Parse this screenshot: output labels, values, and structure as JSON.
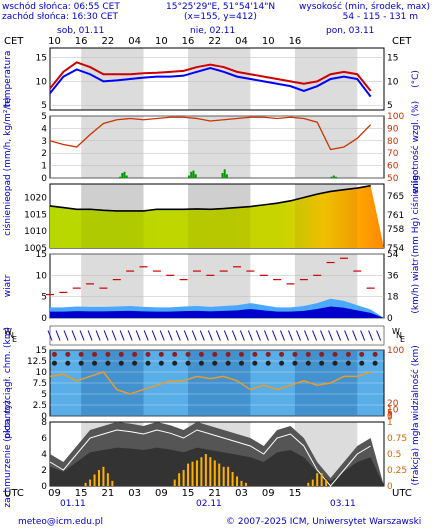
{
  "header": {
    "sunrise": "wschód słońca: 06:55 CET",
    "sunset": "zachód słońca: 16:30 CET",
    "coords": "15°25'29\"E, 51°54'14\"N",
    "grid": "(x=155, y=412)",
    "elev_title": "wysokość (min, środek, max)",
    "elev_values": "54 - 115 - 131 m"
  },
  "top_axis": {
    "tz_left": "CET",
    "tz_right": "CET",
    "days": [
      "sob, 01.11",
      "nie, 02.11",
      "pon, 03.11"
    ],
    "hours": [
      "10",
      "16",
      "22",
      "04",
      "10",
      "16",
      "22",
      "04",
      "10",
      "16"
    ]
  },
  "bottom_axis": {
    "tz_left": "UTC",
    "tz_right": "UTC",
    "hours": [
      "09",
      "15",
      "21",
      "03",
      "09",
      "15",
      "21",
      "03",
      "09",
      "15"
    ],
    "dates": [
      "01.11",
      "02.11",
      "03.11"
    ]
  },
  "footer": {
    "email": "meteo@icm.edu.pl",
    "copyright": "© 2007-2025 ICM, Uniwersytet Warszawski"
  },
  "colors": {
    "night": "#dcdcdc",
    "day": "#ffffff",
    "temp_max": "#cc0000",
    "temp_mean": "#0000ff",
    "humidity": "#cc3300",
    "precip": "#009900",
    "pressure_line": "#000000",
    "wind_fill": "#0000cc",
    "cloud_fill": "#5aaee8"
  },
  "chart_data": [
    {
      "type": "line",
      "panel": "temperature",
      "ylabel_left": "temperatura",
      "ylabel_right": "(°C)",
      "yticks": [
        5,
        10,
        15
      ],
      "ylim": [
        4,
        17
      ],
      "x_hours": [
        0,
        3,
        6,
        9,
        12,
        15,
        18,
        21,
        24,
        27,
        30,
        33,
        36,
        39,
        42,
        45,
        48,
        51,
        54,
        57,
        60,
        63,
        66,
        69,
        72
      ],
      "series": [
        {
          "values": [
            8.5,
            12,
            14,
            13,
            11.5,
            11.5,
            11.5,
            11.7,
            11.8,
            12,
            12.2,
            13,
            13.5,
            13,
            12,
            11.5,
            11,
            10.5,
            10,
            9.5,
            10,
            11.5,
            12,
            11.5,
            8
          ]
        },
        {
          "values": [
            7.5,
            11,
            12.5,
            11.5,
            10,
            10.2,
            10.5,
            10.8,
            11,
            11,
            11.2,
            12,
            12.8,
            12,
            11,
            10.5,
            10,
            9.5,
            9,
            8,
            9,
            10.5,
            11,
            10.5,
            6.8
          ]
        }
      ]
    },
    {
      "type": "bar",
      "panel": "precipitation",
      "ylabel_left": "opad (mm/h, kg/m²/h)",
      "ylabel_right": "wilgotność wzgl. (%)",
      "yticks_left": [
        0,
        1,
        2,
        3,
        4,
        5
      ],
      "yticks_right": [
        50,
        60,
        70,
        80,
        90,
        100
      ],
      "ylim": [
        0,
        5
      ],
      "precip_hours": [
        15.5,
        16,
        16.5,
        17,
        31,
        31.5,
        32,
        32.5,
        38.5,
        39,
        39.5,
        63,
        63.5,
        64
      ],
      "precip_values": [
        0.1,
        0.4,
        0.5,
        0.2,
        0.2,
        0.5,
        0.6,
        0.3,
        0.4,
        0.7,
        0.3,
        0.1,
        0.2,
        0.1
      ],
      "humidity_hours": [
        0,
        3,
        6,
        9,
        12,
        15,
        18,
        21,
        24,
        27,
        30,
        33,
        36,
        39,
        42,
        45,
        48,
        51,
        54,
        57,
        60,
        63,
        66,
        69,
        72
      ],
      "humidity_values": [
        80,
        77,
        75,
        85,
        94,
        97,
        98,
        97,
        98,
        99,
        99,
        98,
        96,
        97,
        98,
        99,
        99,
        98,
        99,
        98,
        95,
        73,
        75,
        82,
        93
      ]
    },
    {
      "type": "area",
      "panel": "pressure",
      "ylabel_left": "ciśnienie",
      "ylabel_right": "(mm Hg) ciśnienie",
      "yticks_left": [
        1005,
        1010,
        1015,
        1020
      ],
      "yticks_right": [
        754,
        758,
        761,
        765
      ],
      "ylim": [
        1005,
        1024
      ],
      "x_hours": [
        0,
        3,
        6,
        9,
        12,
        15,
        18,
        21,
        24,
        27,
        30,
        33,
        36,
        39,
        42,
        45,
        48,
        51,
        54,
        57,
        60,
        63,
        66,
        69,
        72
      ],
      "values": [
        1017.5,
        1017,
        1016.5,
        1016.5,
        1016.2,
        1016,
        1016,
        1016,
        1016.5,
        1016.5,
        1016.5,
        1016.6,
        1016.5,
        1016.7,
        1017,
        1017.3,
        1017.8,
        1018.3,
        1019,
        1020,
        1021,
        1021.8,
        1022.3,
        1022.8,
        1023.5
      ]
    },
    {
      "type": "area",
      "panel": "wind",
      "ylabel_left": "wiatr",
      "ylabel_right": "(km/h) wiatr",
      "yticks_left": [
        0,
        5,
        10,
        15
      ],
      "yticks_right": [
        0,
        18,
        36,
        54
      ],
      "ylim": [
        0,
        15
      ],
      "x_hours": [
        0,
        3,
        6,
        9,
        12,
        15,
        18,
        21,
        24,
        27,
        30,
        33,
        36,
        39,
        42,
        45,
        48,
        51,
        54,
        57,
        60,
        63,
        66,
        69,
        72
      ],
      "speed": [
        2.5,
        2.5,
        2.7,
        2.6,
        2.6,
        2.7,
        2.8,
        2.6,
        2.5,
        2.5,
        2.7,
        2.8,
        2.6,
        2.8,
        3,
        3.5,
        3,
        2.5,
        2.5,
        2.8,
        3.5,
        4.5,
        4,
        3,
        2
      ],
      "gusts": [
        5.5,
        6,
        7,
        8,
        7,
        9,
        11,
        12,
        11,
        10,
        9,
        11,
        10,
        11,
        12,
        11,
        10,
        9,
        8,
        9,
        10,
        13,
        14,
        11,
        7
      ]
    },
    {
      "type": "scatter",
      "panel": "clouds",
      "ylabel_left": "pion. rozciągł. chm. (km)",
      "ylabel_right": "widzialność (km)",
      "yticks_left": [
        0,
        2.5,
        5,
        7.5,
        10,
        12.5,
        15
      ],
      "yticks_right": [
        0,
        1,
        5,
        10,
        20,
        100
      ],
      "ylim": [
        0,
        15
      ],
      "x_hours": [
        0,
        3,
        6,
        9,
        12,
        15,
        18,
        21,
        24,
        27,
        30,
        33,
        36,
        39,
        42,
        45,
        48,
        51,
        54,
        57,
        60,
        63,
        66,
        69,
        72
      ],
      "visibility_line": [
        9,
        9.5,
        8,
        9,
        10,
        6,
        5,
        6,
        7,
        8,
        8,
        9,
        8.5,
        9,
        8,
        6,
        7,
        6,
        7,
        8,
        7,
        7.5,
        9,
        9,
        10
      ]
    },
    {
      "type": "area",
      "panel": "cloud_cover",
      "ylabel_left": "zachmurzenie (oktanty)",
      "ylabel_right": "(frakcja) mgła",
      "yticks_left": [
        0,
        2,
        4,
        6,
        8
      ],
      "yticks_right": [
        0,
        0.25,
        0.5,
        0.75,
        1
      ],
      "ylim": [
        0,
        8
      ],
      "x_hours": [
        0,
        3,
        6,
        9,
        12,
        15,
        18,
        21,
        24,
        27,
        30,
        33,
        36,
        39,
        42,
        45,
        48,
        51,
        54,
        57,
        60,
        63,
        66,
        69,
        72
      ],
      "total_cover": [
        4,
        3,
        5,
        7,
        7.5,
        8,
        7.8,
        7.5,
        8,
        7.6,
        7,
        8,
        7.5,
        7,
        6.5,
        6,
        5,
        7,
        7.5,
        6,
        3,
        1,
        3,
        5,
        6
      ],
      "fog_hours": [
        8,
        9,
        10,
        11,
        12,
        13,
        14,
        28,
        29,
        30,
        31,
        32,
        33,
        34,
        35,
        36,
        37,
        38,
        39,
        40,
        41,
        42,
        43,
        44,
        58,
        59,
        60,
        61,
        62
      ],
      "fog_values": [
        0.05,
        0.1,
        0.18,
        0.25,
        0.3,
        0.2,
        0.08,
        0.1,
        0.2,
        0.25,
        0.35,
        0.38,
        0.4,
        0.45,
        0.5,
        0.45,
        0.4,
        0.35,
        0.3,
        0.3,
        0.22,
        0.15,
        0.08,
        0.05,
        0.05,
        0.1,
        0.2,
        0.2,
        0.1
      ]
    }
  ]
}
